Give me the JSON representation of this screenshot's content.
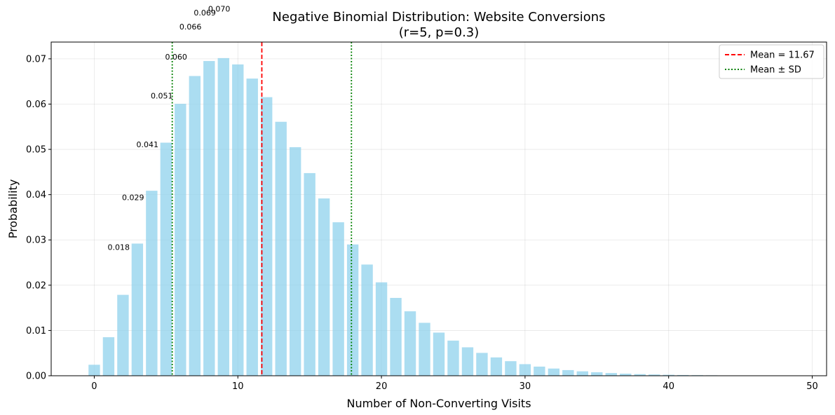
{
  "chart_data": {
    "type": "bar",
    "title": "Negative Binomial Distribution: Website Conversions",
    "subtitle": "(r=5, p=0.3)",
    "xlabel": "Number of Non-Converting Visits",
    "ylabel": "Probability",
    "xlim": [
      -3,
      51
    ],
    "ylim": [
      0,
      0.0737
    ],
    "xticks": [
      0,
      10,
      20,
      30,
      40,
      50
    ],
    "xtick_labels": [
      "0",
      "10",
      "20",
      "30",
      "40",
      "50"
    ],
    "yticks": [
      0,
      0.01,
      0.02,
      0.03,
      0.04,
      0.05,
      0.06,
      0.07
    ],
    "ytick_labels": [
      "0.00",
      "0.01",
      "0.02",
      "0.03",
      "0.04",
      "0.05",
      "0.06",
      "0.07"
    ],
    "grid": true,
    "bar_color": "#87CEEB",
    "x": [
      0,
      1,
      2,
      3,
      4,
      5,
      6,
      7,
      8,
      9,
      10,
      11,
      12,
      13,
      14,
      15,
      16,
      17,
      18,
      19,
      20,
      21,
      22,
      23,
      24,
      25,
      26,
      27,
      28,
      29,
      30,
      31,
      32,
      33,
      34,
      35,
      36,
      37,
      38,
      39,
      40,
      41,
      42,
      43,
      44,
      45,
      46,
      47,
      48,
      49,
      50
    ],
    "values": [
      0.00243,
      0.00851,
      0.01787,
      0.02919,
      0.04086,
      0.05148,
      0.06006,
      0.0662,
      0.06951,
      0.07016,
      0.06876,
      0.06564,
      0.06153,
      0.05609,
      0.05049,
      0.04476,
      0.03916,
      0.0339,
      0.029,
      0.02456,
      0.02063,
      0.01719,
      0.01423,
      0.01169,
      0.00953,
      0.00776,
      0.00628,
      0.00505,
      0.00405,
      0.00322,
      0.00256,
      0.00202,
      0.00159,
      0.00125,
      0.00098,
      0.00077,
      0.0006,
      0.00046,
      0.00036,
      0.00028,
      0.00021,
      0.00016,
      0.00013,
      0.0001,
      7e-05,
      6e-05,
      4e-05,
      3e-05,
      3e-05,
      2e-05,
      2e-05
    ],
    "annotations": [
      {
        "x": 1.7,
        "y": 0.0278,
        "text": "0.018"
      },
      {
        "x": 2.7,
        "y": 0.0388,
        "text": "0.029"
      },
      {
        "x": 3.7,
        "y": 0.0505,
        "text": "0.041"
      },
      {
        "x": 4.7,
        "y": 0.0612,
        "text": "0.051"
      },
      {
        "x": 5.7,
        "y": 0.0698,
        "text": "0.060"
      },
      {
        "x": 6.7,
        "y": 0.0765,
        "text": "0.066"
      },
      {
        "x": 7.7,
        "y": 0.0796,
        "text": "0.069"
      },
      {
        "x": 8.7,
        "y": 0.0804,
        "text": "0.070"
      }
    ],
    "mean": {
      "value": 11.67,
      "color": "#ff0000",
      "label": "Mean = 11.67"
    },
    "sd_lines": {
      "values": [
        5.43,
        17.91
      ],
      "color": "#008000",
      "label": "Mean ± SD"
    },
    "legend_position": "top-right"
  }
}
